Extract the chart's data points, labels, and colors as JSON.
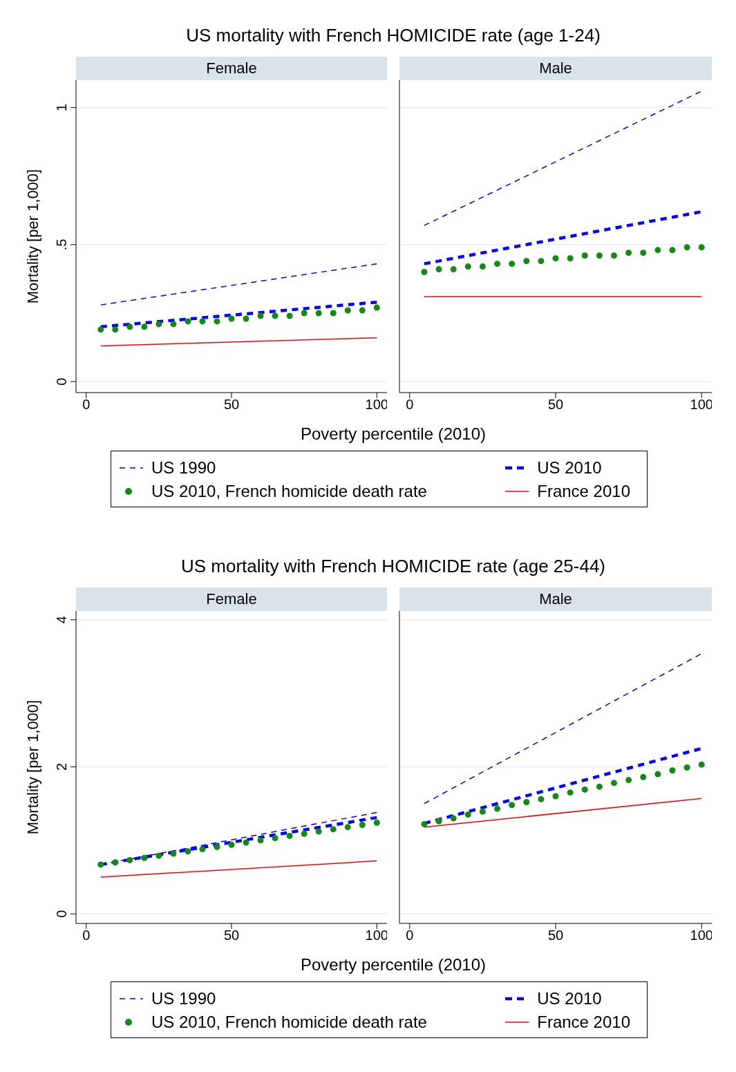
{
  "chart_data": [
    {
      "type": "line",
      "title": "US mortality with French HOMICIDE rate (age 1-24)",
      "subtitle": "Female",
      "xlabel": "Poverty percentile (2010)",
      "ylabel": "Mortality [per 1,000]",
      "xlim": [
        -3.5,
        103.5
      ],
      "xticks": [
        0,
        50,
        100
      ],
      "ylim": [
        -0.04,
        1.1
      ],
      "yticks": [
        0,
        {
          "value": 0.5,
          "label": ".5"
        },
        1
      ],
      "grid": "y",
      "legend": "bottom",
      "series": [
        {
          "name": "US 1990",
          "color": "#0000ff",
          "type": "line",
          "line_style": "dashed",
          "marker": "none",
          "x": [
            5,
            100
          ],
          "values": [
            0.28,
            0.43
          ]
        },
        {
          "name": "US 2010",
          "color": "#0000ff",
          "type": "line",
          "line_style": "dashed",
          "marker": "none",
          "x": [
            5,
            100
          ],
          "values": [
            0.2,
            0.29
          ]
        },
        {
          "name": "US 2010, French homicide death rate",
          "color": "#138a13",
          "type": "scatter",
          "marker": "circle",
          "x": [
            5,
            10,
            15,
            20,
            25,
            30,
            35,
            40,
            45,
            50,
            55,
            60,
            65,
            70,
            75,
            80,
            85,
            90,
            95,
            100
          ],
          "values": [
            0.19,
            0.19,
            0.2,
            0.2,
            0.21,
            0.21,
            0.22,
            0.22,
            0.22,
            0.23,
            0.23,
            0.24,
            0.24,
            0.24,
            0.25,
            0.25,
            0.25,
            0.26,
            0.26,
            0.27
          ]
        },
        {
          "name": "France 2010",
          "color": "#ff0000",
          "type": "line",
          "line_style": "solid",
          "marker": "none",
          "x": [
            5,
            100
          ],
          "values": [
            0.13,
            0.16
          ]
        }
      ]
    },
    {
      "type": "line",
      "subtitle": "Male",
      "xlim": [
        -3.5,
        103.5
      ],
      "xticks": [
        0,
        50,
        100
      ],
      "ylim": [
        -0.04,
        1.1
      ],
      "yticks": [
        0,
        0.5,
        1
      ],
      "grid": "y",
      "tick_labels": "x",
      "series": [
        {
          "color": "#0000ff",
          "type": "line",
          "line_style": "dashed",
          "marker": "none",
          "x": [
            5,
            100
          ],
          "values": [
            0.57,
            1.06
          ]
        },
        {
          "color": "#0000ff",
          "type": "line",
          "line_style": "dashed",
          "marker": "none",
          "x": [
            5,
            100
          ],
          "values": [
            0.43,
            0.62
          ]
        },
        {
          "color": "#138a13",
          "type": "scatter",
          "marker": "circle",
          "x": [
            5,
            10,
            15,
            20,
            25,
            30,
            35,
            40,
            45,
            50,
            55,
            60,
            65,
            70,
            75,
            80,
            85,
            90,
            95,
            100
          ],
          "values": [
            0.4,
            0.41,
            0.41,
            0.42,
            0.42,
            0.43,
            0.43,
            0.44,
            0.44,
            0.45,
            0.45,
            0.46,
            0.46,
            0.46,
            0.47,
            0.47,
            0.48,
            0.48,
            0.49,
            0.49
          ]
        },
        {
          "color": "#ff0000",
          "type": "line",
          "line_style": "solid",
          "marker": "none",
          "x": [
            5,
            100
          ],
          "values": [
            0.31,
            0.31
          ]
        }
      ]
    },
    {
      "type": "line",
      "title": "US mortality with French HOMICIDE rate (age 25-44)",
      "subtitle": "Female",
      "xlabel": "Poverty percentile (2010)",
      "ylabel": "Mortality [per 1,000]",
      "xlim": [
        -3.5,
        103.5
      ],
      "xticks": [
        0,
        50,
        100
      ],
      "ylim": [
        -0.13,
        4.12
      ],
      "yticks": [
        0,
        2,
        4
      ],
      "grid": "y",
      "legend": "bottom",
      "series": [
        {
          "name": "US 1990",
          "color": "#0000ff",
          "type": "line",
          "line_style": "dashed",
          "marker": "none",
          "x": [
            5,
            100
          ],
          "values": [
            0.67,
            1.38
          ]
        },
        {
          "name": "US 2010",
          "color": "#0000ff",
          "type": "line",
          "line_style": "dashed",
          "marker": "none",
          "x": [
            5,
            100
          ],
          "values": [
            0.67,
            1.31
          ]
        },
        {
          "name": "US 2010, French homicide death rate",
          "color": "#138a13",
          "type": "scatter",
          "marker": "circle",
          "x": [
            5,
            10,
            15,
            20,
            25,
            30,
            35,
            40,
            45,
            50,
            55,
            60,
            65,
            70,
            75,
            80,
            85,
            90,
            95,
            100
          ],
          "values": [
            0.67,
            0.7,
            0.73,
            0.76,
            0.79,
            0.82,
            0.85,
            0.88,
            0.91,
            0.94,
            0.97,
            1.0,
            1.03,
            1.06,
            1.09,
            1.12,
            1.15,
            1.18,
            1.21,
            1.24
          ]
        },
        {
          "name": "France 2010",
          "color": "#ff0000",
          "type": "line",
          "line_style": "solid",
          "marker": "none",
          "x": [
            5,
            100
          ],
          "values": [
            0.5,
            0.72
          ]
        }
      ]
    },
    {
      "type": "line",
      "subtitle": "Male",
      "xlim": [
        -3.5,
        103.5
      ],
      "xticks": [
        0,
        50,
        100
      ],
      "ylim": [
        -0.13,
        4.12
      ],
      "yticks": [
        0,
        2,
        4
      ],
      "grid": "y",
      "tick_labels": "x",
      "series": [
        {
          "color": "#0000ff",
          "type": "line",
          "line_style": "dashed",
          "marker": "none",
          "x": [
            5,
            100
          ],
          "values": [
            1.5,
            3.54
          ]
        },
        {
          "color": "#0000ff",
          "type": "line",
          "line_style": "dashed",
          "marker": "none",
          "x": [
            5,
            100
          ],
          "values": [
            1.23,
            2.25
          ]
        },
        {
          "color": "#138a13",
          "type": "scatter",
          "marker": "circle",
          "x": [
            5,
            10,
            15,
            20,
            25,
            30,
            35,
            40,
            45,
            50,
            55,
            60,
            65,
            70,
            75,
            80,
            85,
            90,
            95,
            100
          ],
          "values": [
            1.22,
            1.26,
            1.3,
            1.35,
            1.39,
            1.43,
            1.48,
            1.52,
            1.56,
            1.6,
            1.65,
            1.69,
            1.73,
            1.78,
            1.82,
            1.86,
            1.9,
            1.95,
            1.99,
            2.03
          ]
        },
        {
          "color": "#ff0000",
          "type": "line",
          "line_style": "solid",
          "marker": "none",
          "x": [
            5,
            100
          ],
          "values": [
            1.18,
            1.57
          ]
        }
      ]
    }
  ]
}
